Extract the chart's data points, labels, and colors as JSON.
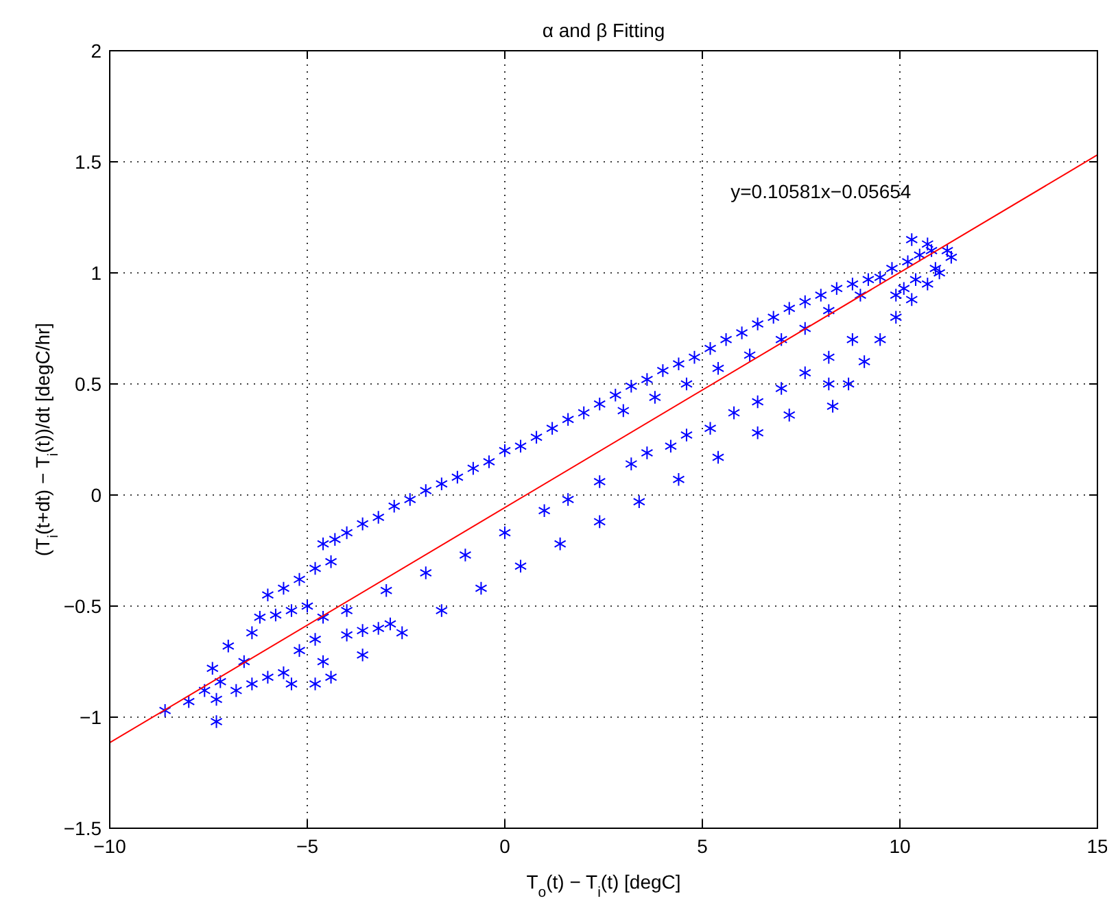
{
  "chart_data": {
    "type": "scatter",
    "title": "α and β Fitting",
    "xlabel": "T$_{o}$(t) − T$_{i}$(t) [degC]",
    "ylabel": "(T$_{i}$(t+dt) − T$_{i}$(t))/dt [degC/hr]",
    "xlim": [
      -10,
      15
    ],
    "ylim": [
      -1.5,
      2
    ],
    "xticks": [
      -10,
      -5,
      0,
      5,
      10,
      15
    ],
    "yticks": [
      -1.5,
      -1,
      -0.5,
      0,
      0.5,
      1,
      1.5,
      2
    ],
    "grid": true,
    "annotations": [
      "y=0.10581x−0.05654"
    ],
    "series": [
      {
        "marker": "cross",
        "color": "#0000ff",
        "x": [
          -4.6,
          -4.3,
          -4.0,
          -3.6,
          -3.2,
          -2.8,
          -2.4,
          -2.0,
          -1.6,
          -1.2,
          -0.8,
          -0.4,
          0,
          0.4,
          0.8,
          1.2,
          1.6,
          2.0,
          2.4,
          2.8,
          3.2,
          3.6,
          4.0,
          4.4,
          4.8,
          5.2,
          5.6,
          6.0,
          6.4,
          6.8,
          7.2,
          7.6,
          8.0,
          8.4,
          8.8,
          9.2,
          3.0,
          3.8,
          4.6,
          5.4,
          6.2,
          7.0,
          7.6,
          8.2,
          9.0,
          -4.0,
          -3.0,
          -2.0,
          -1.0,
          0,
          1.0,
          1.6,
          2.4,
          3.2,
          3.6,
          4.2,
          4.6,
          5.2,
          5.8,
          6.4,
          7.0,
          7.6,
          8.2,
          8.8,
          -3.6,
          -2.6,
          -1.6,
          -0.6,
          0.4,
          1.4,
          2.4,
          3.4,
          4.4,
          5.4,
          6.4,
          7.2,
          8.2,
          -6.0,
          -5.6,
          -5.2,
          -4.8,
          -4.4,
          -6.2,
          -5.8,
          -5.4,
          -5.0,
          -4.6,
          -4.8,
          -4.6,
          -5.2,
          -5.6,
          -6.0,
          -5.4,
          -4.8,
          -4.4,
          -6.4,
          -7.0,
          -6.6,
          -7.4,
          -8.6,
          -8.0,
          -7.6,
          -7.2,
          -7.3,
          -7.3,
          -6.8,
          -6.4,
          -4.0,
          -3.6,
          -3.2,
          -2.9,
          9.5,
          9.8,
          10.2,
          10.5,
          10.8,
          11.2,
          11.3,
          10.9,
          10.4,
          10.1,
          10.3,
          10.7,
          9.9,
          8.3,
          8.7,
          9.1,
          9.5,
          9.9,
          10.3,
          10.7,
          11.0
        ],
        "values": [
          -0.22,
          -0.2,
          -0.17,
          -0.13,
          -0.1,
          -0.05,
          -0.02,
          0.02,
          0.05,
          0.08,
          0.12,
          0.15,
          0.2,
          0.22,
          0.26,
          0.3,
          0.34,
          0.37,
          0.41,
          0.45,
          0.49,
          0.52,
          0.56,
          0.59,
          0.62,
          0.66,
          0.7,
          0.73,
          0.77,
          0.8,
          0.84,
          0.87,
          0.9,
          0.93,
          0.95,
          0.97,
          0.38,
          0.44,
          0.5,
          0.57,
          0.63,
          0.7,
          0.75,
          0.83,
          0.9,
          -0.52,
          -0.43,
          -0.35,
          -0.27,
          -0.17,
          -0.07,
          -0.02,
          0.06,
          0.14,
          0.19,
          0.22,
          0.27,
          0.3,
          0.37,
          0.42,
          0.48,
          0.55,
          0.62,
          0.7,
          -0.72,
          -0.62,
          -0.52,
          -0.42,
          -0.32,
          -0.22,
          -0.12,
          -0.03,
          0.07,
          0.17,
          0.28,
          0.36,
          0.5,
          -0.45,
          -0.42,
          -0.38,
          -0.33,
          -0.3,
          -0.55,
          -0.54,
          -0.52,
          -0.5,
          -0.55,
          -0.65,
          -0.75,
          -0.7,
          -0.8,
          -0.82,
          -0.85,
          -0.85,
          -0.82,
          -0.62,
          -0.68,
          -0.75,
          -0.78,
          -0.97,
          -0.93,
          -0.88,
          -0.84,
          -0.92,
          -1.02,
          -0.88,
          -0.85,
          -0.63,
          -0.61,
          -0.6,
          -0.58,
          0.98,
          1.02,
          1.05,
          1.08,
          1.1,
          1.1,
          1.07,
          1.02,
          0.97,
          0.93,
          1.15,
          1.13,
          0.9,
          0.4,
          0.5,
          0.6,
          0.7,
          0.8,
          0.88,
          0.95,
          1.0
        ]
      },
      {
        "type": "line",
        "color": "#ff0000",
        "x": [
          -10,
          15
        ],
        "values": [
          -1.115,
          1.531
        ]
      }
    ]
  }
}
